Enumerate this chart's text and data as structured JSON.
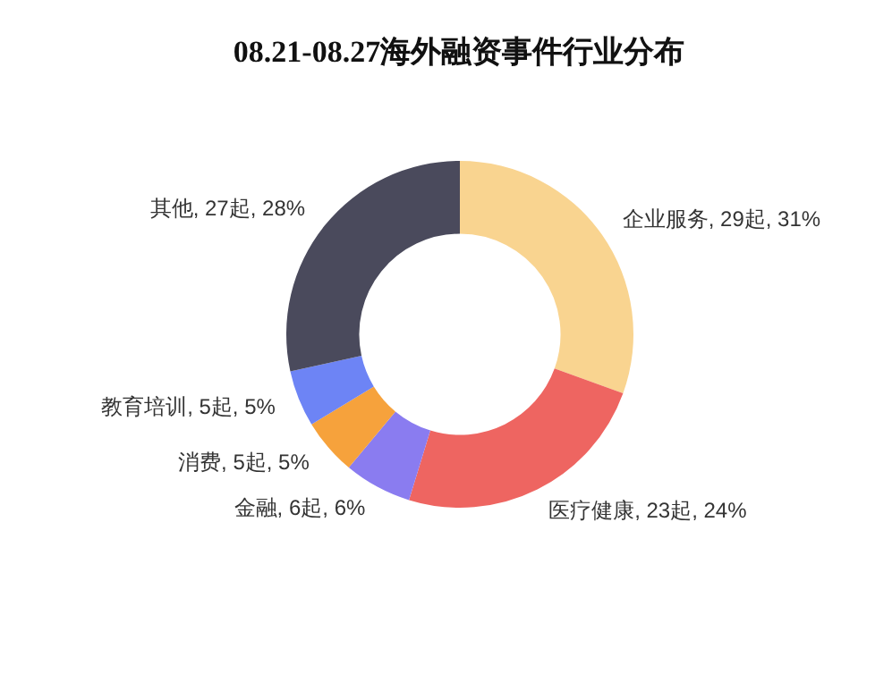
{
  "chart_data": {
    "type": "donut",
    "title": "08.21-08.27海外融资事件行业分布",
    "categories": [
      "企业服务",
      "医疗健康",
      "金融",
      "消费",
      "教育培训",
      "其他"
    ],
    "values": [
      29,
      23,
      6,
      5,
      5,
      27
    ],
    "value_labels": [
      "29起, 31%",
      "23起, 24%",
      "6起, 6%",
      "5起, 5%",
      "5起, 5%",
      "27起, 28%"
    ],
    "colors": [
      "#f9d490",
      "#ee6561",
      "#8a7cf0",
      "#f6a23c",
      "#6d84f5",
      "#4a4a5c"
    ],
    "legend": false
  }
}
